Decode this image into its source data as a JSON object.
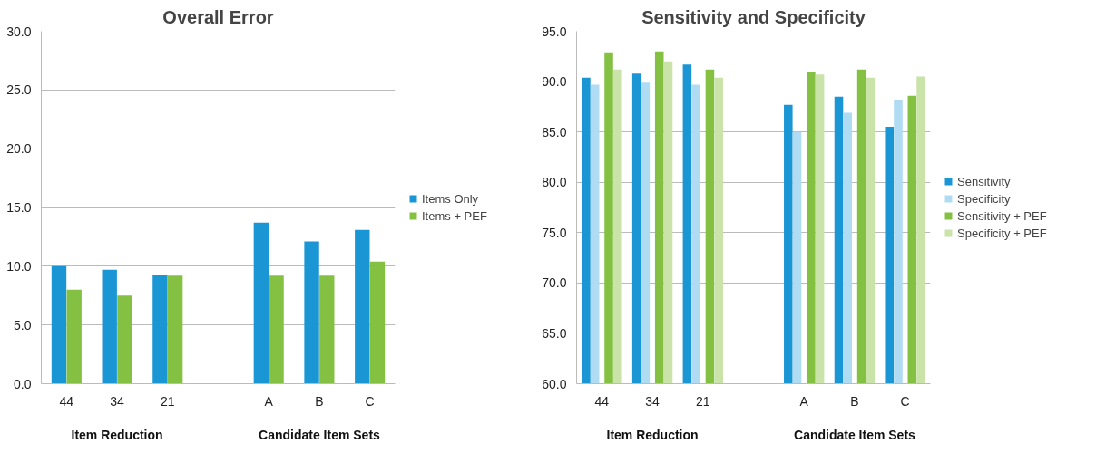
{
  "chart_data": [
    {
      "type": "bar",
      "title": "Overall Error",
      "categories": [
        "44",
        "34",
        "21",
        null,
        "A",
        "B",
        "C"
      ],
      "series": [
        {
          "name": "Items Only",
          "color": "#1b96d4",
          "values": [
            10.0,
            9.7,
            9.3,
            null,
            13.7,
            12.1,
            13.1
          ]
        },
        {
          "name": "Items + PEF",
          "color": "#84c143",
          "values": [
            8.0,
            7.5,
            9.2,
            null,
            9.2,
            9.2,
            10.4
          ]
        }
      ],
      "ylim": [
        0,
        30
      ],
      "yticks": [
        {
          "value": 0,
          "label": "0.0"
        },
        {
          "value": 5,
          "label": "5.0"
        },
        {
          "value": 10,
          "label": "10.0"
        },
        {
          "value": 15,
          "label": "15.0"
        },
        {
          "value": 20,
          "label": "20.0"
        },
        {
          "value": 25,
          "label": "25.0"
        },
        {
          "value": 30,
          "label": "30.0"
        }
      ],
      "grid": "y",
      "legend": "right",
      "annotations": [
        "Item Reduction",
        "Candidate Item Sets"
      ]
    },
    {
      "type": "bar",
      "title": "Sensitivity and Specificity",
      "categories": [
        "44",
        "34",
        "21",
        null,
        "A",
        "B",
        "C"
      ],
      "series": [
        {
          "name": "Sensitivity",
          "color": "#1b96d4",
          "values": [
            90.4,
            90.8,
            91.7,
            null,
            87.7,
            88.5,
            85.5
          ]
        },
        {
          "name": "Specificity",
          "color": "#b0dcf3",
          "values": [
            89.7,
            89.9,
            89.7,
            null,
            85.0,
            86.9,
            88.2
          ]
        },
        {
          "name": "Sensitivity + PEF",
          "color": "#84c143",
          "values": [
            92.9,
            93.0,
            91.2,
            null,
            90.9,
            91.2,
            88.6
          ]
        },
        {
          "name": "Specificity + PEF",
          "color": "#c9e3a8",
          "values": [
            91.2,
            92.0,
            90.4,
            null,
            90.7,
            90.4,
            90.5
          ]
        }
      ],
      "ylim": [
        60,
        95
      ],
      "yticks": [
        {
          "value": 60,
          "label": "60.0"
        },
        {
          "value": 65,
          "label": "65.0"
        },
        {
          "value": 70,
          "label": "70.0"
        },
        {
          "value": 75,
          "label": "75.0"
        },
        {
          "value": 80,
          "label": "80.0"
        },
        {
          "value": 85,
          "label": "85.0"
        },
        {
          "value": 90,
          "label": "90.0"
        },
        {
          "value": 95,
          "label": "95.0"
        }
      ],
      "grid": "y",
      "legend": "right",
      "annotations": [
        "Item Reduction",
        "Candidate Item Sets"
      ]
    }
  ]
}
